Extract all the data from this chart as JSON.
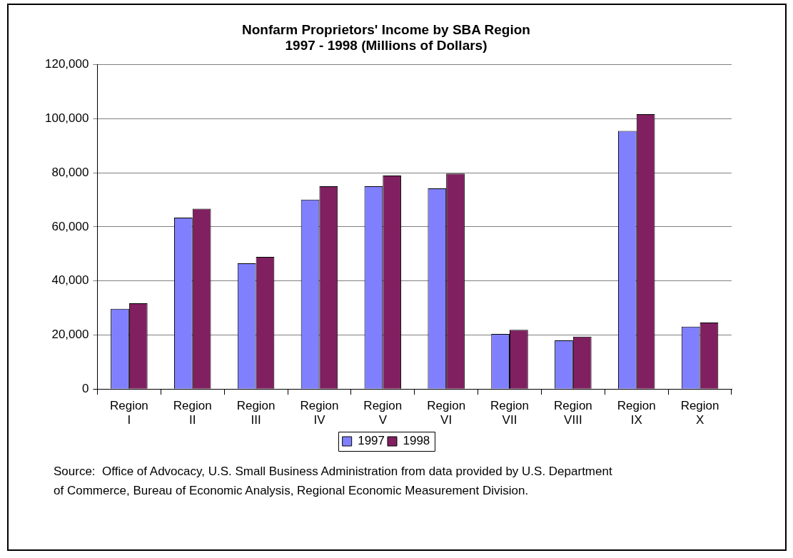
{
  "chart_data": {
    "type": "bar",
    "title": "Nonfarm Proprietors' Income by SBA Region",
    "subtitle": "1997 - 1998 (Millions of Dollars)",
    "categories": [
      "Region I",
      "Region II",
      "Region III",
      "Region IV",
      "Region V",
      "Region VI",
      "Region VII",
      "Region VIII",
      "Region IX",
      "Region X"
    ],
    "series": [
      {
        "name": "1997",
        "color": "#8080ff",
        "values": [
          29700,
          63400,
          46500,
          70100,
          75000,
          74200,
          20400,
          18000,
          95500,
          23100
        ]
      },
      {
        "name": "1998",
        "color": "#802060",
        "values": [
          31700,
          66700,
          48900,
          75000,
          79000,
          79700,
          21900,
          19400,
          101700,
          24600
        ]
      }
    ],
    "ylim": [
      0,
      120000
    ],
    "yticks": [
      {
        "value": 0,
        "label": "0"
      },
      {
        "value": 20000,
        "label": "20,000"
      },
      {
        "value": 40000,
        "label": "40,000"
      },
      {
        "value": 60000,
        "label": "60,000"
      },
      {
        "value": 80000,
        "label": "80,000"
      },
      {
        "value": 100000,
        "label": "100,000"
      },
      {
        "value": 120000,
        "label": "120,000"
      }
    ],
    "grid": "y",
    "legend": "bottom",
    "annotations": [
      "Source:  Office of Advocacy, U.S. Small Business Administration from data provided by U.S. Department of Commerce, Bureau of Economic Analysis, Regional Economic Measurement Division."
    ]
  }
}
